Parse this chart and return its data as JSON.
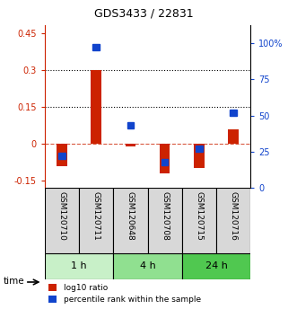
{
  "title": "GDS3433 / 22831",
  "samples": [
    "GSM120710",
    "GSM120711",
    "GSM120648",
    "GSM120708",
    "GSM120715",
    "GSM120716"
  ],
  "log10_ratio": [
    -0.09,
    0.3,
    -0.01,
    -0.12,
    -0.1,
    0.06
  ],
  "percentile_rank": [
    22,
    97,
    43,
    18,
    27,
    52
  ],
  "time_groups": [
    {
      "label": "1 h",
      "color": "#c8f0c8",
      "start": 0,
      "end": 2
    },
    {
      "label": "4 h",
      "color": "#90e090",
      "start": 2,
      "end": 4
    },
    {
      "label": "24 h",
      "color": "#50c850",
      "start": 4,
      "end": 6
    }
  ],
  "bar_color_red": "#cc2200",
  "bar_color_blue": "#1144cc",
  "left_ylim": [
    -0.18,
    0.48
  ],
  "right_ylim": [
    0,
    112
  ],
  "left_yticks": [
    -0.15,
    0.0,
    0.15,
    0.3,
    0.45
  ],
  "right_yticks": [
    0,
    25,
    50,
    75,
    100
  ],
  "hlines": [
    0.15,
    0.3
  ],
  "bg_color": "#d8d8d8",
  "bar_width": 0.35
}
